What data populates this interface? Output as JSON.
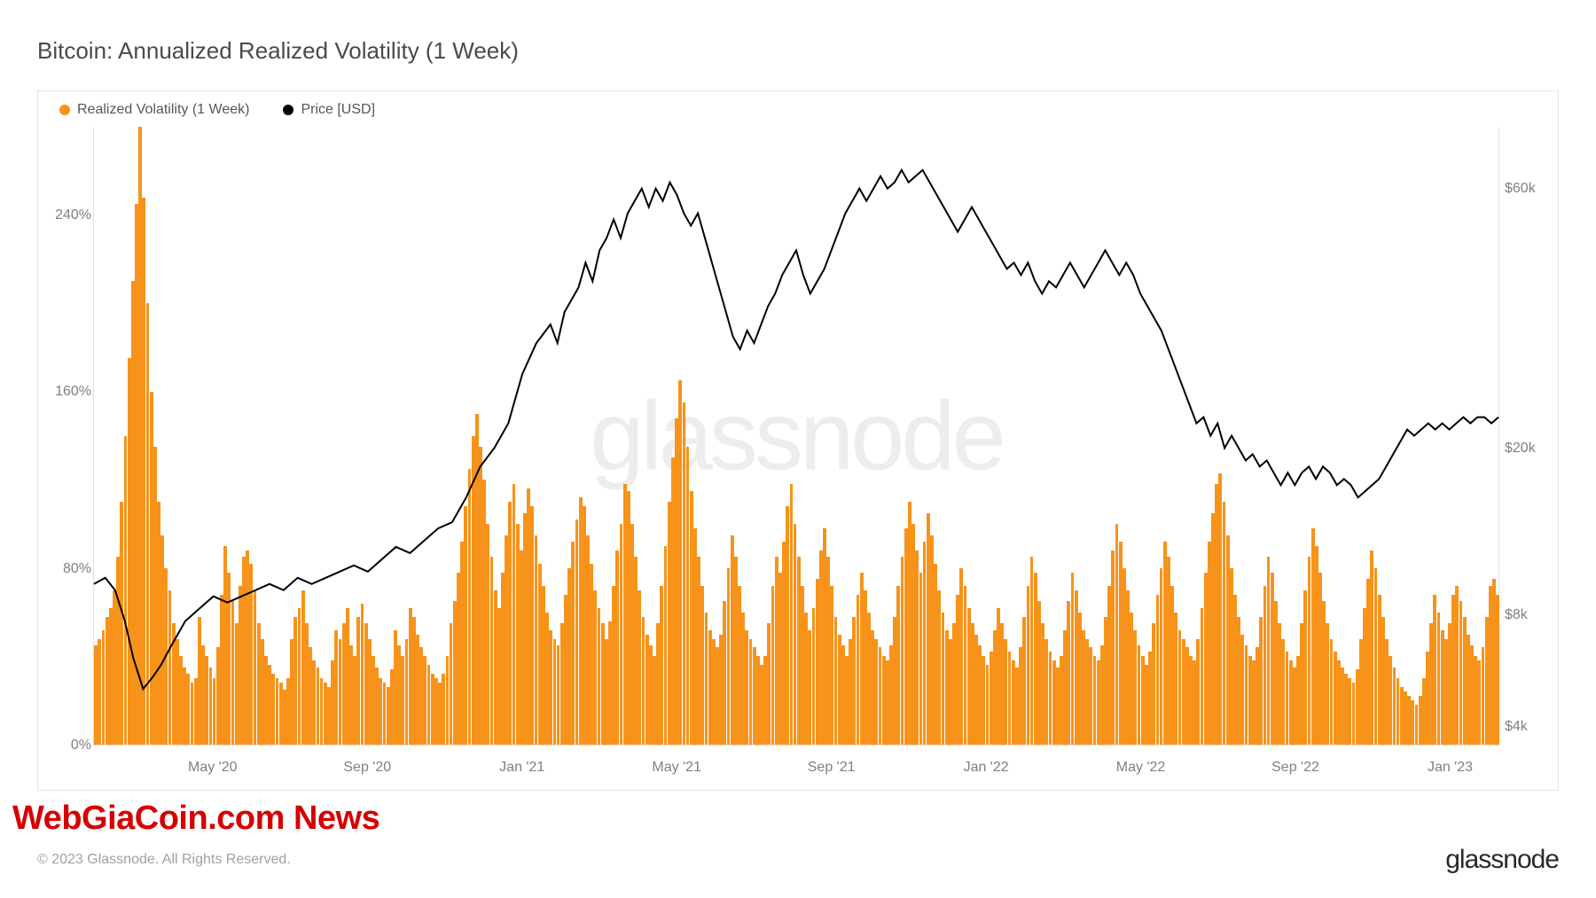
{
  "title": "Bitcoin: Annualized Realized Volatility (1 Week)",
  "legend": {
    "series1": {
      "label": "Realized Volatility (1 Week)",
      "color": "#f7931a"
    },
    "series2": {
      "label": "Price [USD]",
      "color": "#000000"
    }
  },
  "watermark": "glassnode",
  "overlay_text": "WebGiaCoin.com News",
  "copyright": "© 2023 Glassnode. All Rights Reserved.",
  "brand": "glassnode",
  "chart": {
    "type": "combo-bar-line",
    "background_color": "#ffffff",
    "border_color": "#e5e5e5",
    "plot_border_color": "#e0e0e0",
    "y_left": {
      "min": 0,
      "max": 280,
      "ticks": [
        0,
        80,
        160,
        240
      ],
      "tick_labels": [
        "0%",
        "80%",
        "160%",
        "240%"
      ],
      "label_color": "#808080",
      "label_fontsize": 16
    },
    "y_right": {
      "type": "log",
      "ticks": [
        "$4k",
        "$8k",
        "$20k",
        "$60k"
      ],
      "tick_positions_pct": [
        97,
        79,
        52,
        10
      ],
      "label_color": "#808080",
      "label_fontsize": 16
    },
    "x_axis": {
      "labels": [
        "May '20",
        "Sep '20",
        "Jan '21",
        "May '21",
        "Sep '21",
        "Jan '22",
        "May '22",
        "Sep '22",
        "Jan '23"
      ],
      "positions_pct": [
        8.5,
        19.5,
        30.5,
        41.5,
        52.5,
        63.5,
        74.5,
        85.5,
        96.5
      ],
      "label_color": "#808080",
      "label_fontsize": 16
    },
    "volatility_series": {
      "color": "#f7931a",
      "values": [
        45,
        48,
        52,
        58,
        62,
        70,
        85,
        110,
        140,
        175,
        210,
        245,
        280,
        248,
        200,
        160,
        135,
        110,
        95,
        80,
        70,
        55,
        48,
        40,
        35,
        32,
        28,
        30,
        58,
        45,
        40,
        35,
        30,
        44,
        68,
        90,
        78,
        65,
        55,
        72,
        85,
        88,
        82,
        70,
        55,
        48,
        40,
        36,
        32,
        30,
        28,
        25,
        30,
        48,
        58,
        62,
        70,
        55,
        44,
        38,
        35,
        30,
        28,
        26,
        38,
        52,
        48,
        55,
        62,
        45,
        40,
        58,
        64,
        55,
        48,
        40,
        35,
        30,
        28,
        26,
        34,
        52,
        45,
        40,
        48,
        62,
        58,
        50,
        44,
        40,
        36,
        32,
        30,
        28,
        32,
        40,
        55,
        65,
        78,
        92,
        108,
        125,
        140,
        150,
        135,
        120,
        100,
        85,
        70,
        62,
        78,
        95,
        110,
        118,
        100,
        88,
        105,
        116,
        108,
        95,
        82,
        72,
        60,
        52,
        48,
        45,
        55,
        68,
        80,
        92,
        102,
        112,
        108,
        95,
        82,
        70,
        62,
        55,
        48,
        56,
        72,
        88,
        100,
        118,
        115,
        100,
        85,
        70,
        58,
        50,
        45,
        40,
        55,
        72,
        90,
        110,
        130,
        148,
        165,
        155,
        135,
        115,
        98,
        85,
        72,
        60,
        52,
        48,
        44,
        50,
        65,
        80,
        95,
        85,
        72,
        60,
        52,
        48,
        44,
        40,
        36,
        40,
        55,
        72,
        85,
        78,
        92,
        108,
        118,
        100,
        85,
        72,
        60,
        52,
        62,
        75,
        88,
        98,
        85,
        72,
        58,
        50,
        45,
        40,
        48,
        58,
        68,
        78,
        70,
        60,
        52,
        48,
        44,
        40,
        38,
        45,
        58,
        72,
        85,
        98,
        110,
        100,
        88,
        78,
        92,
        105,
        95,
        82,
        70,
        60,
        52,
        48,
        55,
        68,
        80,
        72,
        62,
        55,
        50,
        45,
        40,
        36,
        42,
        52,
        62,
        55,
        48,
        42,
        38,
        35,
        44,
        58,
        72,
        85,
        78,
        65,
        55,
        48,
        42,
        38,
        35,
        40,
        52,
        65,
        78,
        70,
        60,
        52,
        48,
        44,
        40,
        38,
        45,
        58,
        72,
        88,
        100,
        92,
        80,
        70,
        60,
        52,
        45,
        40,
        36,
        42,
        55,
        68,
        80,
        92,
        85,
        72,
        60,
        52,
        48,
        44,
        40,
        38,
        48,
        62,
        78,
        92,
        105,
        118,
        123,
        110,
        95,
        80,
        68,
        58,
        50,
        45,
        40,
        38,
        44,
        58,
        72,
        85,
        78,
        65,
        55,
        48,
        42,
        38,
        35,
        40,
        55,
        70,
        85,
        98,
        90,
        78,
        65,
        55,
        48,
        42,
        38,
        35,
        32,
        30,
        28,
        34,
        48,
        62,
        75,
        88,
        80,
        68,
        58,
        48,
        40,
        35,
        30,
        26,
        24,
        22,
        20,
        18,
        22,
        30,
        42,
        55,
        68,
        60,
        52,
        48,
        55,
        68,
        72,
        65,
        58,
        50,
        45,
        40,
        38,
        44,
        58,
        72,
        75,
        68
      ]
    },
    "price_series": {
      "color": "#000000",
      "line_width": 2,
      "points": [
        [
          0,
          74
        ],
        [
          0.8,
          73
        ],
        [
          1.5,
          75
        ],
        [
          2.2,
          80
        ],
        [
          2.8,
          86
        ],
        [
          3.5,
          91
        ],
        [
          4.2,
          89
        ],
        [
          4.8,
          87
        ],
        [
          5.5,
          84
        ],
        [
          6.5,
          80
        ],
        [
          7.5,
          78
        ],
        [
          8.5,
          76
        ],
        [
          9.5,
          77
        ],
        [
          10.5,
          76
        ],
        [
          11.5,
          75
        ],
        [
          12.5,
          74
        ],
        [
          13.5,
          75
        ],
        [
          14.5,
          73
        ],
        [
          15.5,
          74
        ],
        [
          16.5,
          73
        ],
        [
          17.5,
          72
        ],
        [
          18.5,
          71
        ],
        [
          19.5,
          72
        ],
        [
          20.5,
          70
        ],
        [
          21.5,
          68
        ],
        [
          22.5,
          69
        ],
        [
          23.5,
          67
        ],
        [
          24.5,
          65
        ],
        [
          25.5,
          64
        ],
        [
          26.5,
          60
        ],
        [
          27.5,
          55
        ],
        [
          28.5,
          52
        ],
        [
          29.5,
          48
        ],
        [
          30.5,
          40
        ],
        [
          31.5,
          35
        ],
        [
          32.5,
          32
        ],
        [
          33,
          35
        ],
        [
          33.5,
          30
        ],
        [
          34.5,
          26
        ],
        [
          35,
          22
        ],
        [
          35.5,
          25
        ],
        [
          36,
          20
        ],
        [
          36.5,
          18
        ],
        [
          37,
          15
        ],
        [
          37.5,
          18
        ],
        [
          38,
          14
        ],
        [
          38.5,
          12
        ],
        [
          39,
          10
        ],
        [
          39.5,
          13
        ],
        [
          40,
          10
        ],
        [
          40.5,
          12
        ],
        [
          41,
          9
        ],
        [
          41.5,
          11
        ],
        [
          42,
          14
        ],
        [
          42.5,
          16
        ],
        [
          43,
          14
        ],
        [
          43.5,
          18
        ],
        [
          44,
          22
        ],
        [
          44.5,
          26
        ],
        [
          45,
          30
        ],
        [
          45.5,
          34
        ],
        [
          46,
          36
        ],
        [
          46.5,
          33
        ],
        [
          47,
          35
        ],
        [
          47.5,
          32
        ],
        [
          48,
          29
        ],
        [
          48.5,
          27
        ],
        [
          49,
          24
        ],
        [
          49.5,
          22
        ],
        [
          50,
          20
        ],
        [
          50.5,
          24
        ],
        [
          51,
          27
        ],
        [
          51.5,
          25
        ],
        [
          52,
          23
        ],
        [
          52.5,
          20
        ],
        [
          53,
          17
        ],
        [
          53.5,
          14
        ],
        [
          54,
          12
        ],
        [
          54.5,
          10
        ],
        [
          55,
          12
        ],
        [
          55.5,
          10
        ],
        [
          56,
          8
        ],
        [
          56.5,
          10
        ],
        [
          57,
          9
        ],
        [
          57.5,
          7
        ],
        [
          58,
          9
        ],
        [
          58.5,
          8
        ],
        [
          59,
          7
        ],
        [
          59.5,
          9
        ],
        [
          60,
          11
        ],
        [
          60.5,
          13
        ],
        [
          61,
          15
        ],
        [
          61.5,
          17
        ],
        [
          62,
          15
        ],
        [
          62.5,
          13
        ],
        [
          63,
          15
        ],
        [
          63.5,
          17
        ],
        [
          64,
          19
        ],
        [
          64.5,
          21
        ],
        [
          65,
          23
        ],
        [
          65.5,
          22
        ],
        [
          66,
          24
        ],
        [
          66.5,
          22
        ],
        [
          67,
          25
        ],
        [
          67.5,
          27
        ],
        [
          68,
          25
        ],
        [
          68.5,
          26
        ],
        [
          69,
          24
        ],
        [
          69.5,
          22
        ],
        [
          70,
          24
        ],
        [
          70.5,
          26
        ],
        [
          71,
          24
        ],
        [
          71.5,
          22
        ],
        [
          72,
          20
        ],
        [
          72.5,
          22
        ],
        [
          73,
          24
        ],
        [
          73.5,
          22
        ],
        [
          74,
          24
        ],
        [
          74.5,
          27
        ],
        [
          75,
          29
        ],
        [
          75.5,
          31
        ],
        [
          76,
          33
        ],
        [
          76.5,
          36
        ],
        [
          77,
          39
        ],
        [
          77.5,
          42
        ],
        [
          78,
          45
        ],
        [
          78.5,
          48
        ],
        [
          79,
          47
        ],
        [
          79.5,
          50
        ],
        [
          80,
          48
        ],
        [
          80.5,
          52
        ],
        [
          81,
          50
        ],
        [
          81.5,
          52
        ],
        [
          82,
          54
        ],
        [
          82.5,
          53
        ],
        [
          83,
          55
        ],
        [
          83.5,
          54
        ],
        [
          84,
          56
        ],
        [
          84.5,
          58
        ],
        [
          85,
          56
        ],
        [
          85.5,
          58
        ],
        [
          86,
          56
        ],
        [
          86.5,
          55
        ],
        [
          87,
          57
        ],
        [
          87.5,
          55
        ],
        [
          88,
          56
        ],
        [
          88.5,
          58
        ],
        [
          89,
          57
        ],
        [
          89.5,
          58
        ],
        [
          90,
          60
        ],
        [
          90.5,
          59
        ],
        [
          91,
          58
        ],
        [
          91.5,
          57
        ],
        [
          92,
          55
        ],
        [
          92.5,
          53
        ],
        [
          93,
          51
        ],
        [
          93.5,
          49
        ],
        [
          94,
          50
        ],
        [
          94.5,
          49
        ],
        [
          95,
          48
        ],
        [
          95.5,
          49
        ],
        [
          96,
          48
        ],
        [
          96.5,
          49
        ],
        [
          97,
          48
        ],
        [
          97.5,
          47
        ],
        [
          98,
          48
        ],
        [
          98.5,
          47
        ],
        [
          99,
          47
        ],
        [
          99.5,
          48
        ],
        [
          100,
          47
        ]
      ]
    }
  }
}
